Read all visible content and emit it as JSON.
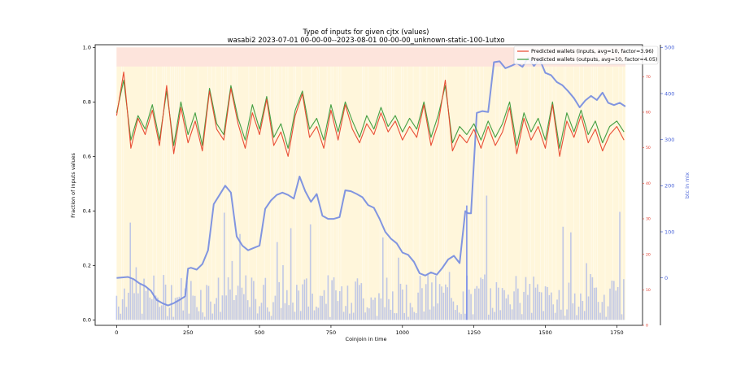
{
  "chart_data": {
    "type": "line",
    "title": "Type of inputs for given cjtx (values)",
    "subtitle": "wasabi2 2023-07-01 00-00-00--2023-08-01 00-00-00_unknown-static-100-1utxo",
    "xlabel": "Coinjoin in time",
    "ylabel": "Fraction of inputs values",
    "y3label": "btc in mix",
    "xlim": [
      -75,
      1840
    ],
    "ylim": [
      -0.02,
      1.01
    ],
    "y2lim": [
      0,
      79
    ],
    "y3lim": [
      -103,
      506
    ],
    "x_ticks": [
      0,
      250,
      500,
      750,
      1000,
      1250,
      1500,
      1750
    ],
    "x_tick_labels": [
      "0",
      "250",
      "500",
      "750",
      "1000",
      "1250",
      "1500",
      "1750"
    ],
    "y_ticks": [
      0.0,
      0.2,
      0.4,
      0.6,
      0.8,
      1.0
    ],
    "y_tick_labels": [
      "0.0",
      "0.2",
      "0.4",
      "0.6",
      "0.8",
      "1.0"
    ],
    "y2_ticks": [
      0,
      10,
      20,
      30,
      40,
      50,
      60,
      70
    ],
    "y2_tick_labels": [
      "0",
      "10",
      "20",
      "30",
      "40",
      "50",
      "60",
      "70"
    ],
    "y3_ticks": [
      0,
      100,
      200,
      300,
      400,
      500
    ],
    "y3_tick_labels": [
      "0",
      "100",
      "200",
      "300",
      "400",
      "500"
    ],
    "legend_position": "top-right",
    "grid": false,
    "series": [
      {
        "name": "Predicted wallets (inputs, avg=10, factor=3.96)",
        "color": "#e8452c",
        "axis": "left",
        "x": [
          0,
          25,
          50,
          75,
          100,
          125,
          150,
          175,
          200,
          225,
          250,
          275,
          300,
          325,
          350,
          375,
          400,
          425,
          450,
          475,
          500,
          525,
          550,
          575,
          600,
          625,
          650,
          675,
          700,
          725,
          750,
          775,
          800,
          825,
          850,
          875,
          900,
          925,
          950,
          975,
          1000,
          1025,
          1050,
          1075,
          1100,
          1125,
          1150,
          1175,
          1200,
          1225,
          1250,
          1275,
          1300,
          1325,
          1350,
          1375,
          1400,
          1425,
          1450,
          1475,
          1500,
          1525,
          1550,
          1575,
          1600,
          1625,
          1650,
          1675,
          1700,
          1725,
          1750,
          1775
        ],
        "values": [
          0.75,
          0.91,
          0.63,
          0.74,
          0.68,
          0.77,
          0.64,
          0.86,
          0.61,
          0.78,
          0.65,
          0.73,
          0.62,
          0.84,
          0.7,
          0.66,
          0.85,
          0.72,
          0.63,
          0.76,
          0.68,
          0.81,
          0.64,
          0.69,
          0.6,
          0.75,
          0.83,
          0.67,
          0.71,
          0.63,
          0.77,
          0.66,
          0.79,
          0.7,
          0.65,
          0.72,
          0.68,
          0.76,
          0.69,
          0.73,
          0.66,
          0.71,
          0.67,
          0.79,
          0.64,
          0.72,
          0.88,
          0.62,
          0.68,
          0.65,
          0.7,
          0.63,
          0.71,
          0.64,
          0.69,
          0.78,
          0.61,
          0.74,
          0.66,
          0.71,
          0.63,
          0.79,
          0.6,
          0.73,
          0.67,
          0.75,
          0.65,
          0.7,
          0.62,
          0.68,
          0.71,
          0.66
        ]
      },
      {
        "name": "Predicted wallets (outputs, avg=10, factor=4.05)",
        "color": "#3a9a3a",
        "axis": "left",
        "x": [
          0,
          25,
          50,
          75,
          100,
          125,
          150,
          175,
          200,
          225,
          250,
          275,
          300,
          325,
          350,
          375,
          400,
          425,
          450,
          475,
          500,
          525,
          550,
          575,
          600,
          625,
          650,
          675,
          700,
          725,
          750,
          775,
          800,
          825,
          850,
          875,
          900,
          925,
          950,
          975,
          1000,
          1025,
          1050,
          1075,
          1100,
          1125,
          1150,
          1175,
          1200,
          1225,
          1250,
          1275,
          1300,
          1325,
          1350,
          1375,
          1400,
          1425,
          1450,
          1475,
          1500,
          1525,
          1550,
          1575,
          1600,
          1625,
          1650,
          1675,
          1700,
          1725,
          1750,
          1775
        ],
        "values": [
          0.76,
          0.88,
          0.66,
          0.75,
          0.7,
          0.79,
          0.66,
          0.84,
          0.64,
          0.8,
          0.68,
          0.76,
          0.64,
          0.85,
          0.72,
          0.68,
          0.86,
          0.74,
          0.66,
          0.79,
          0.7,
          0.82,
          0.67,
          0.72,
          0.63,
          0.77,
          0.84,
          0.7,
          0.74,
          0.66,
          0.79,
          0.69,
          0.8,
          0.73,
          0.67,
          0.75,
          0.7,
          0.78,
          0.71,
          0.75,
          0.69,
          0.74,
          0.7,
          0.8,
          0.67,
          0.75,
          0.86,
          0.65,
          0.71,
          0.68,
          0.72,
          0.66,
          0.73,
          0.67,
          0.72,
          0.8,
          0.64,
          0.76,
          0.69,
          0.74,
          0.66,
          0.8,
          0.63,
          0.76,
          0.69,
          0.77,
          0.68,
          0.73,
          0.65,
          0.71,
          0.73,
          0.69
        ]
      },
      {
        "name": "btc in mix",
        "color": "#7a8fe0",
        "axis": "right-outer",
        "x": [
          0,
          20,
          40,
          60,
          80,
          100,
          120,
          140,
          160,
          180,
          200,
          220,
          240,
          250,
          260,
          280,
          300,
          320,
          340,
          360,
          380,
          400,
          420,
          440,
          460,
          480,
          500,
          520,
          540,
          560,
          580,
          600,
          620,
          640,
          660,
          680,
          700,
          720,
          740,
          760,
          780,
          800,
          820,
          840,
          860,
          880,
          900,
          920,
          940,
          960,
          980,
          1000,
          1020,
          1040,
          1060,
          1080,
          1100,
          1120,
          1140,
          1160,
          1180,
          1200,
          1220,
          1230,
          1240,
          1260,
          1280,
          1300,
          1320,
          1340,
          1360,
          1380,
          1400,
          1420,
          1440,
          1460,
          1480,
          1500,
          1520,
          1540,
          1560,
          1580,
          1600,
          1620,
          1640,
          1660,
          1680,
          1700,
          1720,
          1740,
          1760,
          1780
        ],
        "values": [
          0,
          1,
          2,
          -3,
          -12,
          -18,
          -28,
          -48,
          -55,
          -60,
          -55,
          -48,
          -40,
          20,
          22,
          18,
          30,
          60,
          160,
          180,
          200,
          185,
          90,
          70,
          60,
          65,
          70,
          150,
          168,
          180,
          185,
          180,
          172,
          220,
          188,
          165,
          182,
          135,
          128,
          128,
          132,
          190,
          188,
          182,
          175,
          158,
          152,
          128,
          100,
          85,
          75,
          55,
          50,
          35,
          10,
          5,
          12,
          7,
          22,
          40,
          48,
          32,
          145,
          140,
          140,
          358,
          362,
          360,
          468,
          470,
          455,
          460,
          466,
          458,
          478,
          460,
          475,
          445,
          440,
          425,
          418,
          405,
          390,
          370,
          385,
          395,
          386,
          402,
          380,
          375,
          380,
          372
        ]
      }
    ]
  }
}
